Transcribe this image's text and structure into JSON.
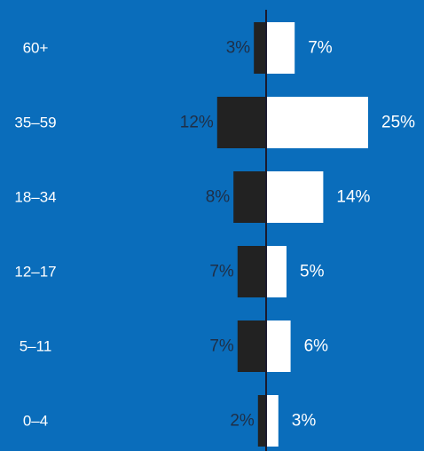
{
  "chart_data": {
    "type": "bar",
    "orientation": "horizontal-diverging",
    "categories": [
      "60+",
      "35–59",
      "18–34",
      "12–17",
      "5–11",
      "0–4"
    ],
    "series": [
      {
        "values": [
          3,
          12,
          8,
          7,
          7,
          2
        ],
        "labels": [
          "3%",
          "12%",
          "8%",
          "7%",
          "7%",
          "2%"
        ],
        "color": "#222222"
      },
      {
        "values": [
          7,
          25,
          14,
          5,
          6,
          3
        ],
        "labels": [
          "7%",
          "25%",
          "14%",
          "5%",
          "6%",
          "3%"
        ],
        "color": "#ffffff"
      }
    ],
    "title": "",
    "xlabel": "",
    "ylabel": "",
    "grid": false,
    "legend": "none",
    "colors": {
      "background": "#0a6dbb",
      "axis": "#1a1a2e",
      "left_label": "#1f2f47",
      "right_label": "#ffffff",
      "category_label": "#ffffff"
    }
  }
}
